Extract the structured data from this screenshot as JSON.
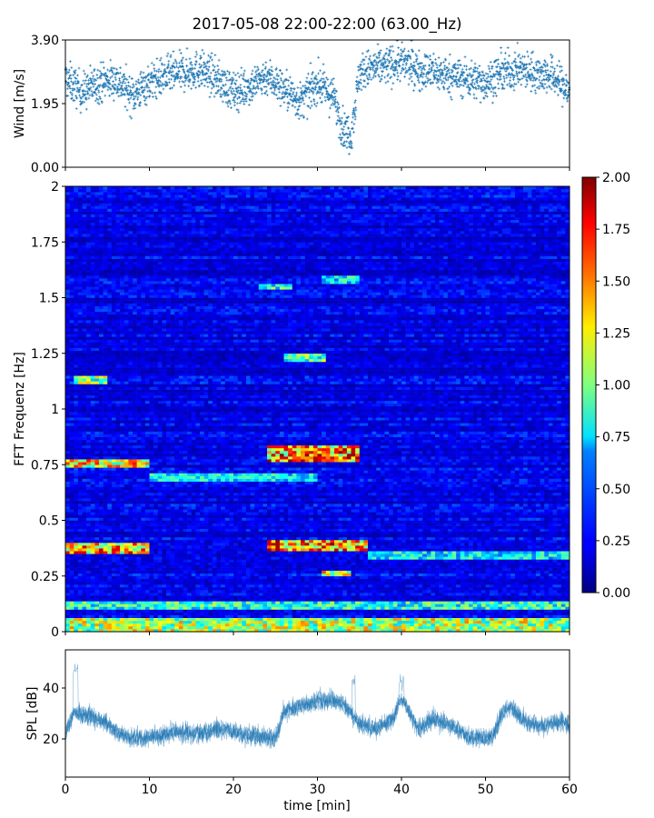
{
  "title": "2017-05-08 22:00-22:00 (63.00_Hz)",
  "chart_data": [
    {
      "type": "scatter",
      "ylabel": "Wind [m/s]",
      "xlabel": "",
      "xlim": [
        0,
        60
      ],
      "ylim": [
        0,
        3.9
      ],
      "yticks": [
        0.0,
        1.95,
        3.9
      ],
      "ytick_labels": [
        "0.00",
        "1.95",
        "3.90"
      ],
      "marker_color": "#1f77b4",
      "marker": "plus",
      "points_per_minute": 40,
      "profile_minutes": [
        0,
        2,
        4,
        6,
        8,
        10,
        12,
        14,
        16,
        18,
        20,
        22,
        24,
        26,
        28,
        30,
        32,
        33,
        34,
        35,
        36,
        38,
        40,
        42,
        44,
        46,
        48,
        50,
        52,
        54,
        56,
        58,
        60
      ],
      "profile_mean_ms": [
        2.7,
        2.3,
        2.6,
        2.7,
        2.2,
        2.6,
        2.8,
        2.9,
        3.0,
        2.7,
        2.3,
        2.5,
        2.8,
        2.4,
        2.0,
        2.6,
        2.1,
        1.2,
        1.0,
        2.9,
        3.0,
        3.1,
        3.2,
        3.0,
        2.9,
        2.8,
        2.7,
        2.6,
        2.9,
        3.0,
        2.9,
        2.8,
        2.3
      ],
      "spread_ms": 0.55
    },
    {
      "type": "heatmap",
      "ylabel": "FFT Frequenz [Hz]",
      "xlabel": "",
      "xlim": [
        0,
        60
      ],
      "ylim": [
        0,
        2
      ],
      "yticks": [
        0,
        0.25,
        0.5,
        0.75,
        1,
        1.25,
        1.5,
        1.75,
        2
      ],
      "ytick_labels": [
        "0",
        "0.25",
        "0.5",
        "0.75",
        "1",
        "1.25",
        "1.5",
        "1.75",
        "2"
      ],
      "colormap": "jet",
      "color_range": [
        0,
        2
      ],
      "colorbar_ticks": [
        0,
        0.25,
        0.5,
        0.75,
        1.0,
        1.25,
        1.5,
        1.75,
        2.0
      ],
      "colorbar_tick_labels": [
        "0.00",
        "0.25",
        "0.50",
        "0.75",
        "1.00",
        "1.25",
        "1.50",
        "1.75",
        "2.00"
      ],
      "time_bins": 120,
      "freq_bins": 160,
      "background_level": 0.2,
      "bands": [
        {
          "freq_hz": [
            0.0,
            0.06
          ],
          "minutes": [
            0,
            60
          ],
          "level": 1.2
        },
        {
          "freq_hz": [
            0.1,
            0.13
          ],
          "minutes": [
            0,
            60
          ],
          "level": 0.9
        },
        {
          "freq_hz": [
            0.36,
            0.39
          ],
          "minutes": [
            0,
            10
          ],
          "level": 1.5
        },
        {
          "freq_hz": [
            0.37,
            0.41
          ],
          "minutes": [
            24,
            36
          ],
          "level": 1.6
        },
        {
          "freq_hz": [
            0.33,
            0.36
          ],
          "minutes": [
            36,
            60
          ],
          "level": 0.8
        },
        {
          "freq_hz": [
            0.74,
            0.77
          ],
          "minutes": [
            0,
            10
          ],
          "level": 1.4
        },
        {
          "freq_hz": [
            0.77,
            0.83
          ],
          "minutes": [
            24,
            35
          ],
          "level": 1.6
        },
        {
          "freq_hz": [
            0.68,
            0.71
          ],
          "minutes": [
            10,
            30
          ],
          "level": 0.8
        },
        {
          "freq_hz": [
            1.12,
            1.15
          ],
          "minutes": [
            1,
            5
          ],
          "level": 1.1
        },
        {
          "freq_hz": [
            1.22,
            1.25
          ],
          "minutes": [
            26,
            31
          ],
          "level": 1.0
        },
        {
          "freq_hz": [
            1.54,
            1.56
          ],
          "minutes": [
            23,
            27
          ],
          "level": 0.9
        },
        {
          "freq_hz": [
            1.57,
            1.59
          ],
          "minutes": [
            31,
            35
          ],
          "level": 0.8
        },
        {
          "freq_hz": [
            0.25,
            0.27
          ],
          "minutes": [
            31,
            34
          ],
          "level": 1.3
        }
      ]
    },
    {
      "type": "line",
      "ylabel": "SPL [dB]",
      "xlabel": "time [min]",
      "xlim": [
        0,
        60
      ],
      "ylim": [
        5,
        55
      ],
      "yticks": [
        20,
        40
      ],
      "ytick_labels": [
        "20",
        "40"
      ],
      "xticks": [
        0,
        10,
        20,
        30,
        40,
        50,
        60
      ],
      "xtick_labels": [
        "0",
        "10",
        "20",
        "30",
        "40",
        "50",
        "60"
      ],
      "line_color": "#1f77b4",
      "profile_minutes": [
        0,
        1,
        3,
        5,
        7,
        9,
        11,
        13,
        15,
        17,
        19,
        21,
        23,
        25,
        26,
        28,
        30,
        32,
        33,
        34,
        35,
        37,
        39,
        40,
        42,
        44,
        46,
        48,
        50,
        51,
        52,
        53,
        55,
        57,
        59,
        60
      ],
      "profile_mean_db": [
        22,
        30,
        29,
        26,
        21,
        20,
        21,
        23,
        22,
        23,
        24,
        22,
        21,
        20,
        31,
        33,
        35,
        35,
        34,
        30,
        26,
        24,
        28,
        36,
        24,
        28,
        25,
        21,
        20,
        22,
        30,
        33,
        26,
        25,
        27,
        26
      ],
      "spread_db": 5
    }
  ]
}
